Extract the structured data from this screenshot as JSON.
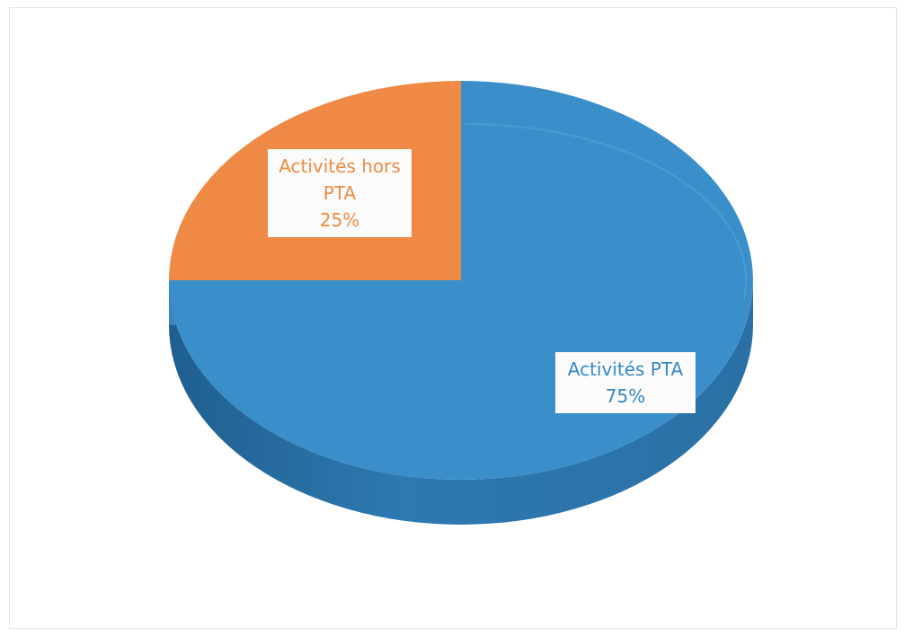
{
  "chart_data": {
    "type": "pie",
    "style": "3d",
    "title": "",
    "slices": [
      {
        "label": "Activités PTA",
        "value": 75,
        "percent_label": "75%",
        "color": "#3a8fcb"
      },
      {
        "label": "Activités hors PTA",
        "value": 25,
        "percent_label": "25%",
        "color": "#ee8a46"
      }
    ],
    "label_lines": {
      "orange": [
        "Activités hors",
        "PTA",
        "25%"
      ],
      "blue": [
        "Activités PTA",
        "75%"
      ]
    },
    "legend": "none"
  }
}
